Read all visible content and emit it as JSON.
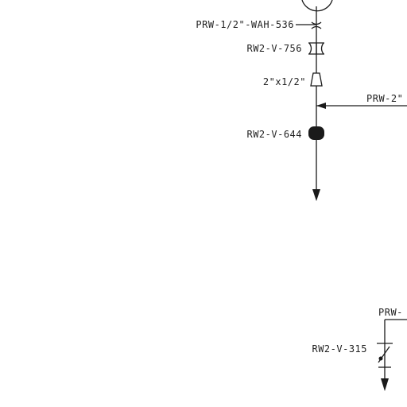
{
  "labels": {
    "wah": "PRW-1/2\"-WAH-536",
    "valve_756": "RW2-V-756",
    "reducer": "2\"x1/2\"",
    "prw_branch": "PRW-2\"",
    "valve_644": "RW2-V-644",
    "prw_lower": "PRW-",
    "valve_315": "RW2-V-315"
  },
  "colors": {
    "line": "#1a1a1a",
    "text": "#222222",
    "background": "#ffffff"
  }
}
